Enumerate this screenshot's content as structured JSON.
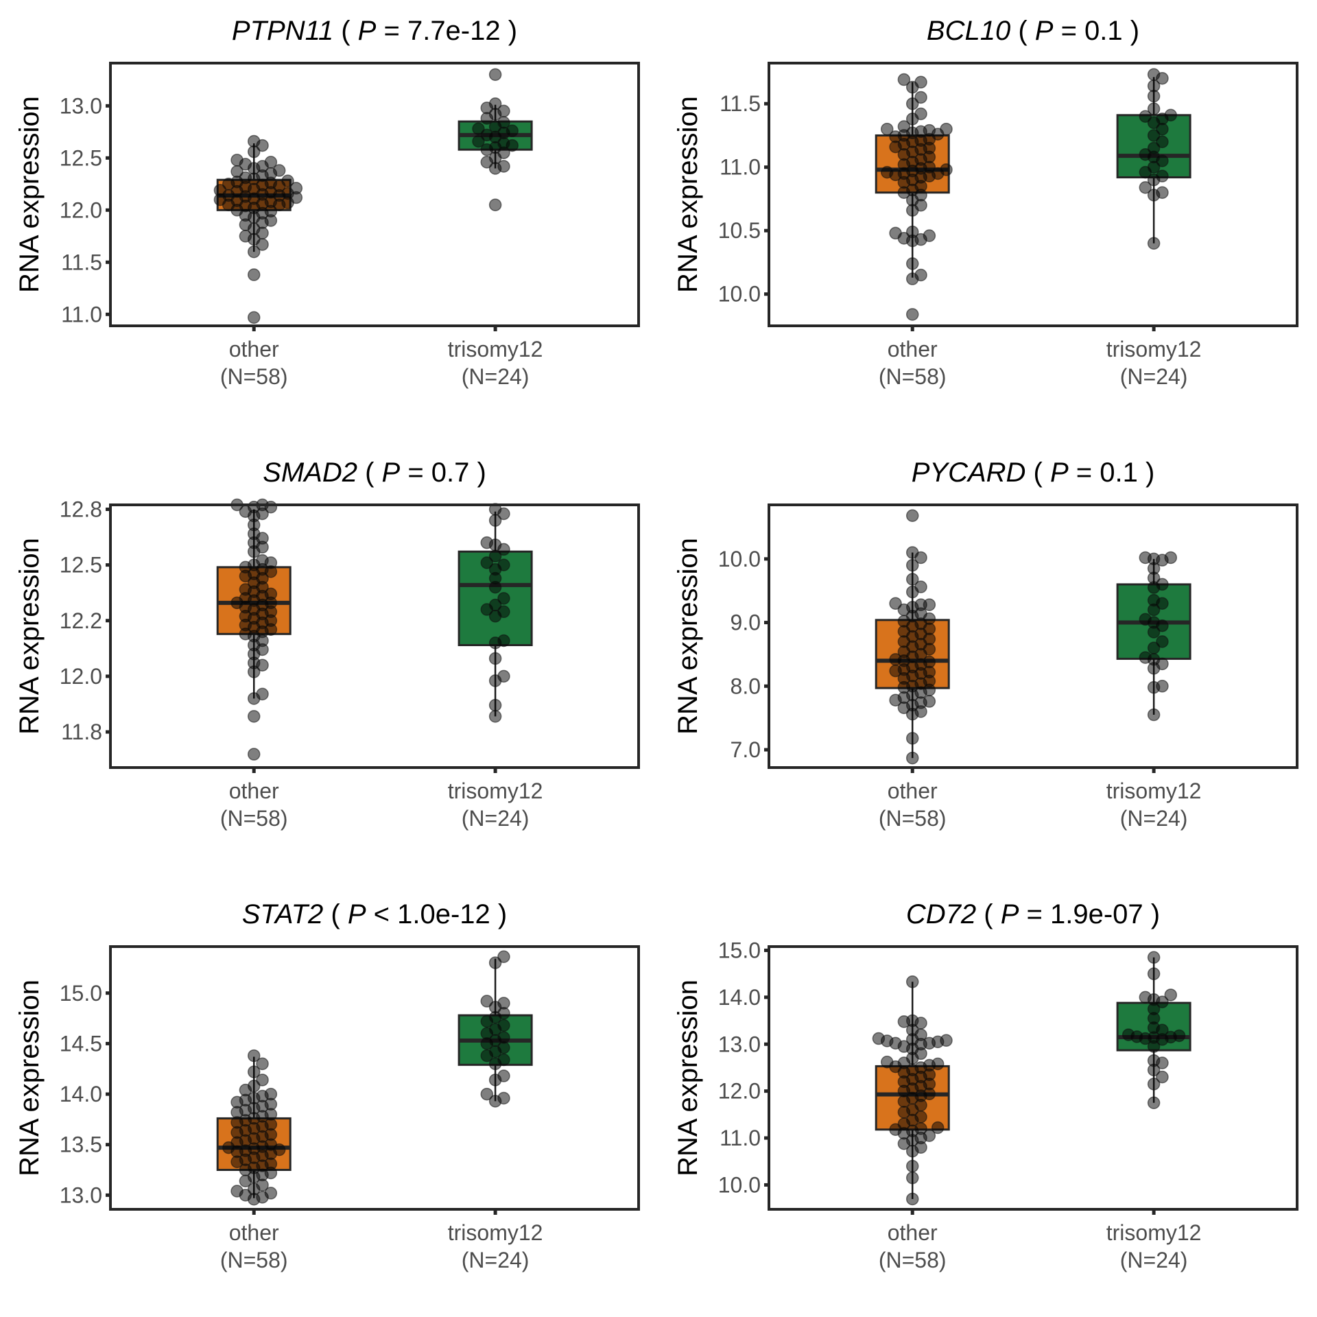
{
  "figure": {
    "ylabel": "RNA expression",
    "categories": [
      "other",
      "trisomy12"
    ],
    "category_counts": [
      "(N=58)",
      "(N=24)"
    ],
    "colors": {
      "other": "#d8731c",
      "trisomy12": "#1e7a3e",
      "points": "#000000",
      "frame": "#262626",
      "axis_text": "#4d4d4d"
    }
  },
  "chart_data": [
    {
      "type": "box",
      "gene": "PTPN11",
      "p_op": "=",
      "p_value": "7.7e-12",
      "ylabel": "RNA expression",
      "categories": [
        "other",
        "trisomy12"
      ],
      "n": [
        58,
        24
      ],
      "ylim": [
        10.89,
        13.41
      ],
      "yticks": [
        11.0,
        11.5,
        12.0,
        12.5,
        13.0
      ],
      "yticklabels": [
        "11.0",
        "11.5",
        "12.0",
        "12.5",
        "13.0"
      ],
      "boxes": [
        {
          "q1": 12.0,
          "median": 12.14,
          "q3": 12.29,
          "whisker_low": 11.6,
          "whisker_high": 12.64
        },
        {
          "q1": 12.58,
          "median": 12.72,
          "q3": 12.85,
          "whisker_low": 12.4,
          "whisker_high": 13.01
        }
      ],
      "points": [
        [
          10.97,
          11.38,
          11.6,
          11.67,
          11.72,
          11.75,
          11.78,
          11.82,
          11.86,
          11.88,
          11.9,
          11.93,
          11.95,
          11.97,
          11.99,
          12.0,
          12.02,
          12.04,
          12.05,
          12.05,
          12.06,
          12.07,
          12.08,
          12.09,
          12.1,
          12.11,
          12.12,
          12.13,
          12.14,
          12.14,
          12.15,
          12.16,
          12.17,
          12.18,
          12.19,
          12.2,
          12.21,
          12.22,
          12.23,
          12.24,
          12.25,
          12.26,
          12.27,
          12.28,
          12.3,
          12.31,
          12.33,
          12.35,
          12.37,
          12.38,
          12.4,
          12.42,
          12.44,
          12.46,
          12.48,
          12.56,
          12.62,
          12.66
        ],
        [
          12.05,
          12.4,
          12.42,
          12.46,
          12.5,
          12.55,
          12.58,
          12.6,
          12.62,
          12.64,
          12.66,
          12.7,
          12.72,
          12.74,
          12.76,
          12.78,
          12.8,
          12.84,
          12.88,
          12.92,
          12.95,
          12.98,
          13.02,
          13.3
        ]
      ]
    },
    {
      "type": "box",
      "gene": "BCL10",
      "p_op": "=",
      "p_value": "0.1",
      "ylabel": "RNA expression",
      "categories": [
        "other",
        "trisomy12"
      ],
      "n": [
        58,
        24
      ],
      "ylim": [
        9.75,
        11.82
      ],
      "yticks": [
        10.0,
        10.5,
        11.0,
        11.5
      ],
      "yticklabels": [
        "10.0",
        "10.5",
        "11.0",
        "11.5"
      ],
      "boxes": [
        {
          "q1": 10.8,
          "median": 10.98,
          "q3": 11.25,
          "whisker_low": 10.13,
          "whisker_high": 11.67
        },
        {
          "q1": 10.92,
          "median": 11.09,
          "q3": 11.41,
          "whisker_low": 10.4,
          "whisker_high": 11.71
        }
      ],
      "points": [
        [
          9.84,
          10.12,
          10.15,
          10.24,
          10.42,
          10.43,
          10.44,
          10.46,
          10.48,
          10.49,
          10.66,
          10.7,
          10.74,
          10.78,
          10.8,
          10.82,
          10.85,
          10.88,
          10.9,
          10.92,
          10.93,
          10.94,
          10.95,
          10.95,
          10.96,
          10.97,
          10.98,
          10.99,
          11.0,
          11.02,
          11.04,
          11.06,
          11.08,
          11.1,
          11.12,
          11.14,
          11.15,
          11.16,
          11.18,
          11.2,
          11.21,
          11.22,
          11.24,
          11.25,
          11.26,
          11.27,
          11.28,
          11.29,
          11.3,
          11.3,
          11.32,
          11.38,
          11.42,
          11.5,
          11.55,
          11.63,
          11.67,
          11.69
        ],
        [
          10.4,
          10.78,
          10.8,
          10.84,
          10.9,
          10.93,
          10.96,
          11.0,
          11.05,
          11.08,
          11.1,
          11.15,
          11.2,
          11.25,
          11.3,
          11.35,
          11.38,
          11.4,
          11.41,
          11.46,
          11.56,
          11.64,
          11.7,
          11.73
        ]
      ]
    },
    {
      "type": "box",
      "gene": "SMAD2",
      "p_op": "=",
      "p_value": "0.7",
      "ylabel": "RNA expression",
      "categories": [
        "other",
        "trisomy12"
      ],
      "n": [
        58,
        24
      ],
      "ylim": [
        11.59,
        12.77
      ],
      "yticks": [
        11.75,
        12.0,
        12.25,
        12.5,
        12.75
      ],
      "yticklabels": [
        "11.8",
        "12.0",
        "12.2",
        "12.5",
        "12.8"
      ],
      "boxes": [
        {
          "q1": 12.19,
          "median": 12.33,
          "q3": 12.49,
          "whisker_low": 11.9,
          "whisker_high": 12.75
        },
        {
          "q1": 12.14,
          "median": 12.41,
          "q3": 12.56,
          "whisker_low": 11.82,
          "whisker_high": 12.74
        }
      ],
      "points": [
        [
          11.65,
          11.82,
          11.9,
          11.92,
          12.02,
          12.05,
          12.06,
          12.1,
          12.12,
          12.14,
          12.16,
          12.18,
          12.19,
          12.2,
          12.21,
          12.22,
          12.23,
          12.24,
          12.25,
          12.26,
          12.27,
          12.28,
          12.29,
          12.3,
          12.31,
          12.32,
          12.33,
          12.33,
          12.34,
          12.35,
          12.36,
          12.37,
          12.38,
          12.39,
          12.4,
          12.42,
          12.44,
          12.45,
          12.46,
          12.47,
          12.48,
          12.49,
          12.5,
          12.51,
          12.52,
          12.56,
          12.58,
          12.6,
          12.62,
          12.64,
          12.68,
          12.72,
          12.73,
          12.74,
          12.76,
          12.76,
          12.77,
          12.77
        ],
        [
          11.82,
          11.87,
          11.98,
          12.0,
          12.08,
          12.15,
          12.16,
          12.27,
          12.29,
          12.3,
          12.32,
          12.35,
          12.4,
          12.44,
          12.48,
          12.5,
          12.51,
          12.54,
          12.57,
          12.59,
          12.6,
          12.7,
          12.73,
          12.75
        ]
      ]
    },
    {
      "type": "box",
      "gene": "PYCARD",
      "p_op": "=",
      "p_value": "0.1",
      "ylabel": "RNA expression",
      "categories": [
        "other",
        "trisomy12"
      ],
      "n": [
        58,
        24
      ],
      "ylim": [
        6.72,
        10.85
      ],
      "yticks": [
        7.0,
        8.0,
        9.0,
        10.0
      ],
      "yticklabels": [
        "7.0",
        "8.0",
        "9.0",
        "10.0"
      ],
      "boxes": [
        {
          "q1": 7.97,
          "median": 8.4,
          "q3": 9.04,
          "whisker_low": 6.87,
          "whisker_high": 10.1
        },
        {
          "q1": 8.43,
          "median": 9.0,
          "q3": 9.6,
          "whisker_low": 7.55,
          "whisker_high": 10.0
        }
      ],
      "points": [
        [
          6.87,
          7.18,
          7.56,
          7.6,
          7.66,
          7.7,
          7.74,
          7.76,
          7.78,
          7.82,
          7.86,
          7.9,
          7.94,
          7.98,
          8.0,
          8.04,
          8.08,
          8.12,
          8.16,
          8.2,
          8.22,
          8.24,
          8.26,
          8.3,
          8.34,
          8.38,
          8.4,
          8.42,
          8.46,
          8.5,
          8.54,
          8.58,
          8.62,
          8.66,
          8.7,
          8.74,
          8.78,
          8.82,
          8.86,
          8.9,
          8.94,
          8.98,
          9.02,
          9.06,
          9.1,
          9.14,
          9.2,
          9.24,
          9.28,
          9.28,
          9.3,
          9.48,
          9.56,
          9.68,
          9.9,
          10.02,
          10.1,
          10.68
        ],
        [
          7.55,
          7.98,
          8.0,
          8.28,
          8.35,
          8.42,
          8.45,
          8.6,
          8.7,
          8.85,
          8.95,
          9.0,
          9.05,
          9.2,
          9.3,
          9.35,
          9.55,
          9.6,
          9.7,
          9.85,
          9.98,
          10.0,
          10.02,
          10.02
        ]
      ]
    },
    {
      "type": "box",
      "gene": "STAT2",
      "p_op": "<",
      "p_value": "1.0e-12",
      "ylabel": "RNA expression",
      "categories": [
        "other",
        "trisomy12"
      ],
      "n": [
        58,
        24
      ],
      "ylim": [
        12.86,
        15.46
      ],
      "yticks": [
        13.0,
        13.5,
        14.0,
        14.5,
        15.0
      ],
      "yticklabels": [
        "13.0",
        "13.5",
        "14.0",
        "14.5",
        "15.0"
      ],
      "boxes": [
        {
          "q1": 13.25,
          "median": 13.47,
          "q3": 13.76,
          "whisker_low": 12.97,
          "whisker_high": 14.37
        },
        {
          "q1": 14.29,
          "median": 14.53,
          "q3": 14.78,
          "whisker_low": 13.93,
          "whisker_high": 15.34
        }
      ],
      "points": [
        [
          12.96,
          12.98,
          13.0,
          13.02,
          13.04,
          13.06,
          13.1,
          13.14,
          13.18,
          13.2,
          13.22,
          13.25,
          13.27,
          13.29,
          13.31,
          13.33,
          13.35,
          13.37,
          13.39,
          13.41,
          13.43,
          13.44,
          13.45,
          13.46,
          13.47,
          13.48,
          13.5,
          13.52,
          13.54,
          13.56,
          13.58,
          13.6,
          13.62,
          13.64,
          13.66,
          13.68,
          13.7,
          13.72,
          13.74,
          13.76,
          13.78,
          13.8,
          13.82,
          13.84,
          13.86,
          13.88,
          13.9,
          13.92,
          13.94,
          13.96,
          13.98,
          14.0,
          14.04,
          14.08,
          14.14,
          14.22,
          14.3,
          14.38
        ],
        [
          13.93,
          13.96,
          14.0,
          14.14,
          14.18,
          14.3,
          14.34,
          14.38,
          14.42,
          14.46,
          14.5,
          14.53,
          14.56,
          14.6,
          14.64,
          14.68,
          14.72,
          14.76,
          14.8,
          14.86,
          14.9,
          14.92,
          15.3,
          15.36
        ]
      ]
    },
    {
      "type": "box",
      "gene": "CD72",
      "p_op": "=",
      "p_value": "1.9e-07",
      "ylabel": "RNA expression",
      "categories": [
        "other",
        "trisomy12"
      ],
      "n": [
        58,
        24
      ],
      "ylim": [
        9.48,
        15.08
      ],
      "yticks": [
        10.0,
        11.0,
        12.0,
        13.0,
        14.0,
        15.0
      ],
      "yticklabels": [
        "10.0",
        "11.0",
        "12.0",
        "13.0",
        "14.0",
        "15.0"
      ],
      "boxes": [
        {
          "q1": 11.18,
          "median": 11.93,
          "q3": 12.53,
          "whisker_low": 9.7,
          "whisker_high": 14.33
        },
        {
          "q1": 12.87,
          "median": 13.15,
          "q3": 13.88,
          "whisker_low": 11.75,
          "whisker_high": 14.85
        }
      ],
      "points": [
        [
          9.7,
          10.15,
          10.4,
          10.72,
          10.8,
          10.88,
          10.95,
          11.0,
          11.05,
          11.1,
          11.15,
          11.18,
          11.2,
          11.22,
          11.3,
          11.38,
          11.45,
          11.55,
          11.6,
          11.7,
          11.78,
          11.85,
          11.9,
          11.94,
          12.0,
          12.05,
          12.1,
          12.15,
          12.2,
          12.25,
          12.3,
          12.35,
          12.4,
          12.45,
          12.5,
          12.52,
          12.55,
          12.58,
          12.62,
          12.7,
          12.8,
          12.9,
          12.95,
          13.0,
          13.02,
          13.05,
          13.07,
          13.08,
          13.1,
          13.12,
          13.2,
          13.3,
          13.45,
          13.48,
          13.5,
          13.02,
          12.6,
          14.33
        ],
        [
          11.75,
          12.15,
          12.3,
          12.45,
          12.6,
          12.65,
          12.95,
          13.1,
          13.12,
          13.14,
          13.15,
          13.16,
          13.18,
          13.2,
          13.3,
          13.35,
          13.55,
          13.75,
          13.9,
          13.95,
          14.0,
          14.05,
          14.5,
          14.85
        ]
      ]
    }
  ]
}
